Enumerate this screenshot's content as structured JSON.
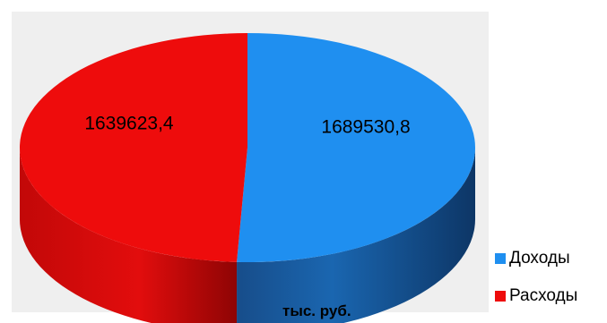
{
  "chart_data": {
    "type": "pie",
    "categories": [
      "Доходы",
      "Расходы"
    ],
    "values": [
      1689530.8,
      1639623.4
    ],
    "value_labels": [
      "1689530,8",
      "1639623,4"
    ],
    "colors": [
      "#1f8ff0",
      "#ee0c0c"
    ],
    "title": "",
    "unit_label": "тыс. руб.",
    "three_d": true,
    "legend_placement": "bottom-right"
  }
}
